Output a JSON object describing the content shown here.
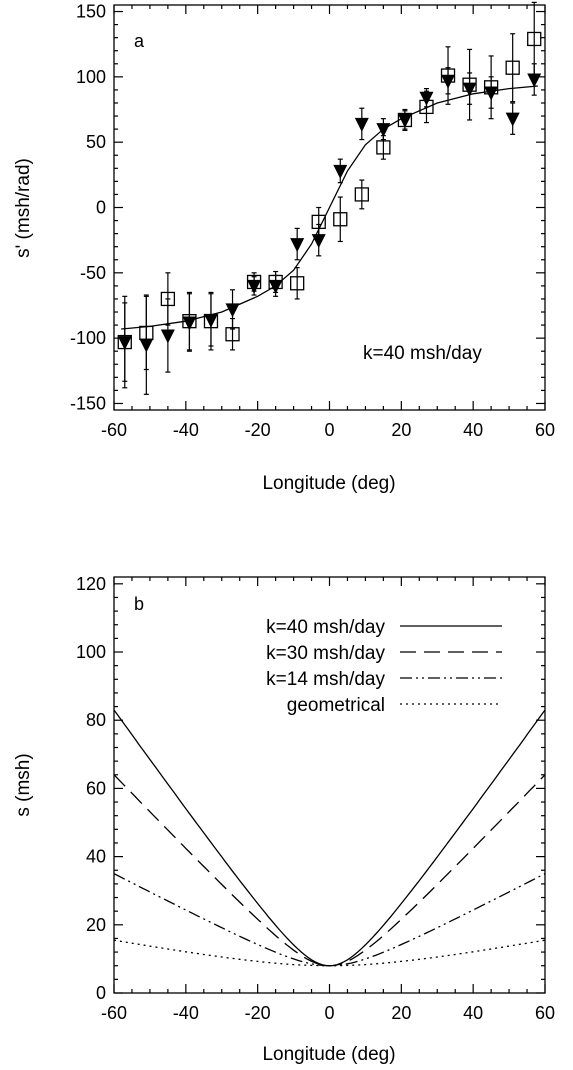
{
  "chart_data": [
    {
      "type": "scatter",
      "panel_label": "a",
      "xlabel": "Longitude (deg)",
      "ylabel": "s' (msh/rad)",
      "xlim": [
        -60,
        60
      ],
      "ylim": [
        -155,
        155
      ],
      "xticks": [
        -60,
        -40,
        -20,
        0,
        20,
        40,
        60
      ],
      "yticks": [
        -150,
        -100,
        -50,
        0,
        50,
        100,
        150
      ],
      "annotation": "k=40 msh/day",
      "series": [
        {
          "marker": "square",
          "points": [
            {
              "x": -57,
              "y": -103,
              "err": 30
            },
            {
              "x": -51,
              "y": -96,
              "err": 28
            },
            {
              "x": -45,
              "y": -70,
              "err": 20
            },
            {
              "x": -39,
              "y": -87,
              "err": 22
            },
            {
              "x": -33,
              "y": -87,
              "err": 22
            },
            {
              "x": -27,
              "y": -97,
              "err": 12
            },
            {
              "x": -21,
              "y": -57,
              "err": 7
            },
            {
              "x": -15,
              "y": -57,
              "err": 8
            },
            {
              "x": -9,
              "y": -58,
              "err": 12
            },
            {
              "x": -3,
              "y": -11,
              "err": 11
            },
            {
              "x": 3,
              "y": -9,
              "err": 17
            },
            {
              "x": 9,
              "y": 10,
              "err": 11
            },
            {
              "x": 15,
              "y": 46,
              "err": 9
            },
            {
              "x": 21,
              "y": 67,
              "err": 7
            },
            {
              "x": 27,
              "y": 77,
              "err": 12
            },
            {
              "x": 33,
              "y": 101,
              "err": 22
            },
            {
              "x": 39,
              "y": 94,
              "err": 27
            },
            {
              "x": 45,
              "y": 92,
              "err": 24
            },
            {
              "x": 51,
              "y": 107,
              "err": 26
            },
            {
              "x": 57,
              "y": 129,
              "err": 28
            }
          ]
        },
        {
          "marker": "triangle-down",
          "points": [
            {
              "x": -57,
              "y": -103,
              "err": 35
            },
            {
              "x": -51,
              "y": -105,
              "err": 38
            },
            {
              "x": -45,
              "y": -98,
              "err": 28
            },
            {
              "x": -39,
              "y": -88,
              "err": 22
            },
            {
              "x": -33,
              "y": -86,
              "err": 20
            },
            {
              "x": -27,
              "y": -78,
              "err": 15
            },
            {
              "x": -21,
              "y": -60,
              "err": 7
            },
            {
              "x": -15,
              "y": -60,
              "err": 8
            },
            {
              "x": -9,
              "y": -28,
              "err": 12
            },
            {
              "x": -3,
              "y": -25,
              "err": 12
            },
            {
              "x": 3,
              "y": 28,
              "err": 9
            },
            {
              "x": 9,
              "y": 64,
              "err": 12
            },
            {
              "x": 15,
              "y": 60,
              "err": 8
            },
            {
              "x": 21,
              "y": 67,
              "err": 8
            },
            {
              "x": 27,
              "y": 84,
              "err": 7
            },
            {
              "x": 33,
              "y": 97,
              "err": 10
            },
            {
              "x": 39,
              "y": 91,
              "err": 12
            },
            {
              "x": 45,
              "y": 88,
              "err": 12
            },
            {
              "x": 51,
              "y": 68,
              "err": 12
            },
            {
              "x": 57,
              "y": 98,
              "err": 12
            }
          ]
        },
        {
          "marker": "line",
          "points": [
            {
              "x": -58,
              "y": -93
            },
            {
              "x": -50,
              "y": -91
            },
            {
              "x": -40,
              "y": -87
            },
            {
              "x": -30,
              "y": -80
            },
            {
              "x": -20,
              "y": -68
            },
            {
              "x": -15,
              "y": -60
            },
            {
              "x": -10,
              "y": -48
            },
            {
              "x": -5,
              "y": -28
            },
            {
              "x": 0,
              "y": 0
            },
            {
              "x": 5,
              "y": 28
            },
            {
              "x": 10,
              "y": 48
            },
            {
              "x": 15,
              "y": 60
            },
            {
              "x": 20,
              "y": 68
            },
            {
              "x": 30,
              "y": 80
            },
            {
              "x": 40,
              "y": 87
            },
            {
              "x": 50,
              "y": 91
            },
            {
              "x": 58,
              "y": 93
            }
          ]
        }
      ]
    },
    {
      "type": "line",
      "panel_label": "b",
      "xlabel": "Longitude (deg)",
      "ylabel": "s (msh)",
      "xlim": [
        -60,
        60
      ],
      "ylim": [
        0,
        122
      ],
      "xticks": [
        -60,
        -40,
        -20,
        0,
        20,
        40,
        60
      ],
      "yticks": [
        0,
        20,
        40,
        60,
        80,
        100,
        120
      ],
      "legend_position": "top-right",
      "series": [
        {
          "name": "k=40 msh/day",
          "dash": "solid",
          "s0": 8,
          "a": 75,
          "width": 10
        },
        {
          "name": "k=30 msh/day",
          "dash": "long-dash",
          "s0": 8,
          "a": 56,
          "width": 10
        },
        {
          "name": "k=14 msh/day",
          "dash": "dash-dot-dot",
          "s0": 8,
          "a": 27,
          "width": 12
        },
        {
          "name": "geometrical",
          "dash": "dotted",
          "s0": 8,
          "a": 7.5,
          "width": 28
        }
      ]
    }
  ]
}
